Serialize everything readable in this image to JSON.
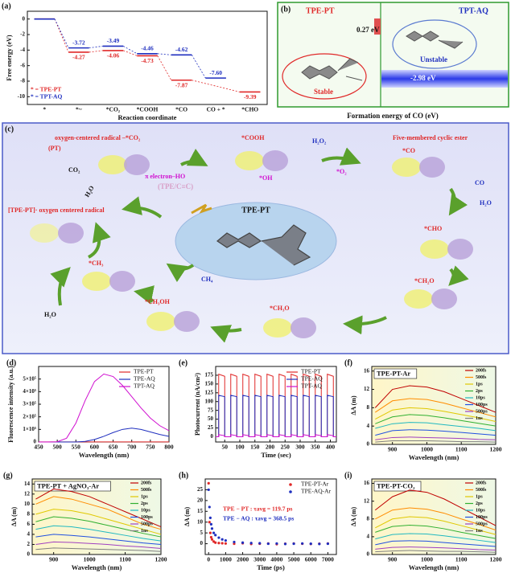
{
  "chart_data": [
    {
      "type": "step",
      "label": "(a)",
      "ylabel": "Free energy (eV)",
      "xlabel": "Reaction coordinate",
      "legend": "lower left",
      "categories": [
        "*",
        "*~",
        "*CO₂",
        "*COOH",
        "*CO",
        "CO + *",
        "*CHO"
      ],
      "ylim": [
        -11,
        1
      ],
      "yticks": [
        0,
        -2,
        -4,
        -6,
        -8,
        -10
      ],
      "series": [
        {
          "name": "* = TPE-PT",
          "color": "#e02828",
          "values": [
            0,
            -4.27,
            -4.06,
            -4.73,
            -7.87,
            null,
            -9.39
          ],
          "value_labels": [
            null,
            "-4.27",
            "-4.06",
            "-4.73",
            "-7.87",
            null,
            "-9.39"
          ]
        },
        {
          "name": "* = TPT-AQ",
          "color": "#1f2fbf",
          "values": [
            0,
            -3.72,
            -3.49,
            -4.46,
            -4.62,
            -7.6,
            null
          ],
          "value_labels": [
            null,
            "-3.72",
            "-3.49",
            "-4.46",
            "-4.62",
            "-7.60",
            null
          ]
        }
      ]
    },
    {
      "type": "line",
      "label": "(d)",
      "ylabel": "Fluorescence intensity (a.u.)",
      "xlabel": "Wavelength (nm)",
      "legend": "upper right",
      "x": [
        450,
        475,
        500,
        525,
        550,
        575,
        600,
        625,
        650,
        675,
        700,
        725,
        750,
        775,
        800
      ],
      "xlim": [
        450,
        800
      ],
      "xticks": [
        450,
        500,
        550,
        600,
        650,
        700,
        750,
        800
      ],
      "ylim": [
        0,
        600000
      ],
      "yticks": [
        0,
        {
          "value": 100000,
          "label": "1×10⁵"
        },
        {
          "value": 200000,
          "label": "2×10⁵"
        },
        {
          "value": 300000,
          "label": "3×10⁵"
        },
        {
          "value": 400000,
          "label": "4×10⁵"
        },
        {
          "value": 500000,
          "label": "5×10⁵"
        }
      ],
      "series": [
        {
          "name": "TPE-PT",
          "color": "#e02828",
          "values": [
            1000,
            1000,
            1000,
            1000,
            1000,
            1000,
            1000,
            1000,
            1000,
            1000,
            1000,
            1000,
            1000,
            1000,
            1000
          ]
        },
        {
          "name": "TPE-AQ",
          "color": "#1f2fbf",
          "values": [
            0,
            0,
            0,
            0,
            0,
            5000,
            20000,
            45000,
            75000,
            100000,
            110000,
            100000,
            80000,
            60000,
            45000
          ]
        },
        {
          "name": "TPT-AQ",
          "color": "#d010d0",
          "values": [
            0,
            0,
            2000,
            30000,
            150000,
            330000,
            480000,
            540000,
            520000,
            450000,
            360000,
            270000,
            190000,
            130000,
            90000
          ]
        }
      ]
    },
    {
      "type": "line",
      "label": "(e)",
      "ylabel": "Photocurrent (nA/cm²)",
      "xlabel": "Time (sec)",
      "legend": "upper right",
      "x": [
        20,
        30,
        30,
        50,
        50,
        70,
        70,
        90,
        90,
        110,
        110,
        130,
        130,
        150,
        150,
        170,
        170,
        190,
        190,
        210,
        210,
        230,
        230,
        250,
        250,
        270,
        270,
        290,
        290,
        310,
        310,
        330,
        330,
        350,
        350,
        370,
        370,
        390,
        390,
        410,
        410,
        420
      ],
      "xlim": [
        20,
        420
      ],
      "xticks": [
        50,
        100,
        150,
        200,
        250,
        300,
        350,
        400
      ],
      "ylim": [
        -15,
        200
      ],
      "yticks": [
        0,
        25,
        50,
        75,
        100,
        125,
        150,
        175
      ],
      "series": [
        {
          "name": "TPE-PT",
          "color": "#e02828",
          "values": [
            0,
            0,
            178,
            172,
            0,
            0,
            178,
            172,
            0,
            0,
            178,
            172,
            0,
            0,
            178,
            172,
            0,
            0,
            178,
            172,
            0,
            0,
            178,
            172,
            0,
            0,
            178,
            172,
            0,
            0,
            178,
            172,
            0,
            0,
            178,
            172,
            0,
            0,
            178,
            172,
            0,
            0
          ]
        },
        {
          "name": "TPE-AQ",
          "color": "#1f2fbf",
          "values": [
            0,
            0,
            118,
            114,
            0,
            0,
            118,
            114,
            0,
            0,
            118,
            114,
            0,
            0,
            118,
            114,
            0,
            0,
            118,
            114,
            0,
            0,
            118,
            114,
            0,
            0,
            118,
            114,
            0,
            0,
            118,
            114,
            0,
            0,
            118,
            114,
            0,
            0,
            118,
            114,
            0,
            0
          ]
        },
        {
          "name": "TPT-AQ",
          "color": "#d010d0",
          "values": [
            0,
            0,
            6,
            3,
            0,
            0,
            6,
            3,
            0,
            0,
            6,
            3,
            0,
            0,
            6,
            3,
            0,
            0,
            6,
            3,
            0,
            0,
            6,
            3,
            0,
            0,
            6,
            3,
            0,
            0,
            6,
            3,
            0,
            0,
            6,
            3,
            0,
            0,
            6,
            3,
            0,
            0
          ]
        }
      ]
    },
    {
      "type": "line",
      "label": "(f)",
      "title": "TPE-PT-Ar",
      "ylabel": "ΔA (m)",
      "xlabel": "Wavelength (nm)",
      "legend": "right",
      "shade": true,
      "x": [
        850,
        900,
        950,
        1000,
        1050,
        1100,
        1150,
        1200
      ],
      "xlim": [
        840,
        1200
      ],
      "xticks": [
        900,
        1000,
        1100,
        1200
      ],
      "ylim": [
        0,
        17
      ],
      "yticks": [
        0,
        4,
        8,
        12,
        16
      ],
      "series": [
        {
          "name": "200fs",
          "color": "#c00000",
          "values": [
            8,
            12,
            12.8,
            12.5,
            11.5,
            10,
            8.5,
            7
          ]
        },
        {
          "name": "500fs",
          "color": "#ff8c00",
          "values": [
            7,
            9.5,
            10,
            9.8,
            9,
            8,
            7,
            6
          ]
        },
        {
          "name": "1ps",
          "color": "#e0c800",
          "values": [
            5.5,
            7.5,
            8,
            7.8,
            7.2,
            6.5,
            5.8,
            5
          ]
        },
        {
          "name": "2ps",
          "color": "#30b030",
          "values": [
            4.5,
            6,
            6.5,
            6.3,
            5.8,
            5.2,
            4.6,
            4
          ]
        },
        {
          "name": "10ps",
          "color": "#20b8c0",
          "values": [
            3.5,
            4.5,
            4.8,
            4.7,
            4.3,
            3.9,
            3.5,
            3
          ]
        },
        {
          "name": "100ps",
          "color": "#2050e0",
          "values": [
            2,
            3,
            3.2,
            3.1,
            2.9,
            2.6,
            2.3,
            2
          ]
        },
        {
          "name": "500ps",
          "color": "#a040c0",
          "values": [
            1,
            1.5,
            1.6,
            1.5,
            1.4,
            1.3,
            1.1,
            1
          ]
        },
        {
          "name": "1ns",
          "color": "#808080",
          "values": [
            0.5,
            0.8,
            0.8,
            0.8,
            0.7,
            0.6,
            0.6,
            0.5
          ]
        }
      ]
    },
    {
      "type": "line",
      "label": "(g)",
      "title": "TPE-PT + AgNO₃-Ar",
      "ylabel": "ΔA (m)",
      "xlabel": "Wavelength (nm)",
      "legend": "right",
      "shade": true,
      "x": [
        850,
        900,
        950,
        1000,
        1050,
        1100,
        1150,
        1200
      ],
      "xlim": [
        840,
        1200
      ],
      "xticks": [
        900,
        1000,
        1100,
        1200
      ],
      "ylim": [
        0,
        15
      ],
      "yticks": [
        0,
        2,
        4,
        6,
        8,
        10,
        12,
        14
      ],
      "series": [
        {
          "name": "200fs",
          "color": "#c00000",
          "values": [
            11,
            13,
            12.5,
            11.5,
            10,
            8.5,
            7,
            5.5
          ]
        },
        {
          "name": "500fs",
          "color": "#ff8c00",
          "values": [
            10,
            11.5,
            11,
            10,
            9,
            7.5,
            6,
            5
          ]
        },
        {
          "name": "1ps",
          "color": "#e0c800",
          "values": [
            8,
            9,
            8.7,
            8,
            7,
            6,
            5,
            4
          ]
        },
        {
          "name": "2ps",
          "color": "#30b030",
          "values": [
            6.5,
            7.5,
            7.2,
            6.6,
            5.8,
            5,
            4.2,
            3.5
          ]
        },
        {
          "name": "10ps",
          "color": "#20b8c0",
          "values": [
            5,
            5.7,
            5.5,
            5,
            4.4,
            3.8,
            3.2,
            2.7
          ]
        },
        {
          "name": "100ps",
          "color": "#2050e0",
          "values": [
            3.5,
            4,
            3.8,
            3.5,
            3.1,
            2.7,
            2.3,
            2
          ]
        },
        {
          "name": "500ps",
          "color": "#a040c0",
          "values": [
            2,
            2.5,
            2.4,
            2.2,
            2,
            1.7,
            1.5,
            1.2
          ]
        },
        {
          "name": "1ns",
          "color": "#808080",
          "values": [
            1,
            1.3,
            1.2,
            1.1,
            1,
            0.9,
            0.8,
            0.6
          ]
        }
      ]
    },
    {
      "type": "scatter",
      "label": "(h)",
      "ylabel": "ΔA (m)",
      "xlabel": "Time (ps)",
      "legend": "upper right",
      "x": [
        0,
        50,
        100,
        150,
        200,
        300,
        400,
        600,
        800,
        1000,
        1500,
        2000,
        2500,
        3000,
        3500,
        4000,
        4500,
        5000,
        5500,
        6000,
        6500,
        7000
      ],
      "xlim": [
        -200,
        7500
      ],
      "xticks": [
        0,
        1000,
        2000,
        3000,
        4000,
        5000,
        6000,
        7000
      ],
      "ylim": [
        -5,
        30
      ],
      "yticks": [
        0,
        5,
        10,
        15,
        20,
        25
      ],
      "annotations": [
        "TPE − PT : τavg = 119.7 ps",
        "TPE − AQ : τavg = 368.5 ps"
      ],
      "series": [
        {
          "name": "TPE-PT-Ar",
          "color": "#e02828",
          "values": [
            28,
            10,
            5,
            3,
            2,
            1,
            0.5,
            0.3,
            0.2,
            0.1,
            0,
            0.2,
            -0.1,
            0,
            0.1,
            -0.2,
            0,
            0.1,
            0,
            -0.1,
            0,
            0.1
          ]
        },
        {
          "name": "TPE-AQ-Ar",
          "color": "#1f2fbf",
          "values": [
            25,
            17,
            12,
            9,
            7,
            5,
            4,
            2.8,
            2,
            1.5,
            0.8,
            0.5,
            0.3,
            0.2,
            0,
            0.1,
            -0.1,
            0,
            0.1,
            0,
            -0.1,
            0
          ]
        }
      ]
    },
    {
      "type": "line",
      "label": "(i)",
      "title": "TPE-PT-CO₂",
      "ylabel": "ΔA (m)",
      "xlabel": "Wavelength (nm)",
      "legend": "right",
      "shade": true,
      "x": [
        850,
        900,
        950,
        1000,
        1050,
        1100,
        1150,
        1200
      ],
      "xlim": [
        840,
        1200
      ],
      "xticks": [
        900,
        1000,
        1100,
        1200
      ],
      "ylim": [
        0,
        17
      ],
      "yticks": [
        0,
        4,
        8,
        12,
        16
      ],
      "series": [
        {
          "name": "200fs",
          "color": "#c00000",
          "values": [
            10,
            13,
            14.5,
            14,
            12.5,
            10.5,
            8.5,
            6.5
          ]
        },
        {
          "name": "500fs",
          "color": "#ff8c00",
          "values": [
            8,
            10,
            10.5,
            10.2,
            9.3,
            8,
            6.8,
            5.5
          ]
        },
        {
          "name": "1ps",
          "color": "#e0c800",
          "values": [
            6,
            8,
            8.5,
            8.3,
            7.5,
            6.5,
            5.5,
            4.5
          ]
        },
        {
          "name": "2ps",
          "color": "#30b030",
          "values": [
            5,
            6.3,
            6.6,
            6.4,
            5.8,
            5,
            4.3,
            3.6
          ]
        },
        {
          "name": "10ps",
          "color": "#20b8c0",
          "values": [
            3.5,
            4.5,
            4.7,
            4.6,
            4.2,
            3.7,
            3.2,
            2.7
          ]
        },
        {
          "name": "100ps",
          "color": "#2050e0",
          "values": [
            2.2,
            3,
            3.1,
            3,
            2.7,
            2.4,
            2.1,
            1.8
          ]
        },
        {
          "name": "500ps",
          "color": "#a040c0",
          "values": [
            1.2,
            1.6,
            1.7,
            1.6,
            1.5,
            1.3,
            1.1,
            1
          ]
        },
        {
          "name": "1ns",
          "color": "#808080",
          "values": [
            0.6,
            0.8,
            0.9,
            0.8,
            0.7,
            0.7,
            0.6,
            0.5
          ]
        }
      ]
    }
  ],
  "panel_b": {
    "label": "(b)",
    "left_title": "TPE-PT",
    "right_title": "TPT-AQ",
    "left_energy": "0.27 eV",
    "right_energy": "-2.98 eV",
    "left_state": "Stable",
    "right_state": "Unstable",
    "xlabel": "Formation energy of CO (eV)"
  },
  "panel_c": {
    "label": "(c)",
    "center": "TPE-PT",
    "labels": [
      "oxygen-centered radical –*CO₂",
      "(PT)",
      "*COOH",
      "*OH",
      "H₂O₂",
      "*O₂",
      "Five-membered cyclic ester",
      "*CO",
      "CO",
      "H₂O",
      "CO₂",
      "H₂O",
      "π electron–HO",
      "(TPE/C≡C)",
      "[TPE-PT]· oxygen centered radical",
      "*CHO",
      "*CH₂O",
      "*CH₃O",
      "*CH₃OH",
      "*CH₃",
      "CH₄",
      "H₂O"
    ]
  }
}
